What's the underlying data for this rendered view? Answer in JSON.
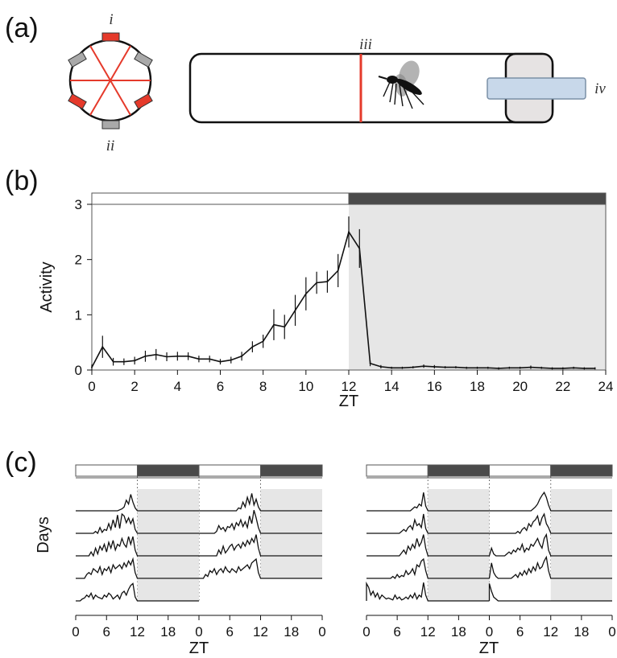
{
  "panels": {
    "a": "(a)",
    "b": "(b)",
    "c": "(c)"
  },
  "apparatus": {
    "label_i": "i",
    "label_ii": "ii",
    "label_iii": "iii",
    "label_iv": "iv"
  },
  "colors": {
    "red": "#e53a2b",
    "gray_mount": "#a9a9a9",
    "dark_bar": "#4a4a4a",
    "night_shade": "#e6e6e6",
    "tube_cap": "#e6e3e3",
    "food_bar": "#c8d8ea"
  },
  "chart_data": [
    {
      "type": "line",
      "panel": "b",
      "xlabel": "ZT",
      "ylabel": "Activity",
      "xlim": [
        0,
        24
      ],
      "ylim": [
        0,
        3
      ],
      "xticks": [
        0,
        2,
        4,
        6,
        8,
        10,
        12,
        14,
        16,
        18,
        20,
        22,
        24
      ],
      "yticks": [
        0,
        1,
        2,
        3
      ],
      "light_dark_bar": {
        "light": [
          0,
          12
        ],
        "dark": [
          12,
          24
        ]
      },
      "dark_shading": [
        12,
        24
      ],
      "series": [
        {
          "x": [
            0,
            0.5,
            1,
            1.5,
            2,
            2.5,
            3,
            3.5,
            4,
            4.5,
            5,
            5.5,
            6,
            6.5,
            7,
            7.5,
            8,
            8.5,
            9,
            9.5,
            10,
            10.5,
            11,
            11.5,
            12,
            12.5,
            13,
            13.5,
            14,
            14.5,
            15,
            15.5,
            16,
            16.5,
            17,
            17.5,
            18,
            18.5,
            19,
            19.5,
            20,
            20.5,
            21,
            21.5,
            22,
            22.5,
            23,
            23.5
          ],
          "values": [
            0.05,
            0.42,
            0.15,
            0.15,
            0.17,
            0.25,
            0.28,
            0.24,
            0.25,
            0.25,
            0.2,
            0.2,
            0.15,
            0.18,
            0.25,
            0.42,
            0.52,
            0.82,
            0.78,
            1.08,
            1.38,
            1.58,
            1.6,
            1.8,
            2.5,
            2.2,
            0.12,
            0.06,
            0.04,
            0.04,
            0.05,
            0.07,
            0.06,
            0.05,
            0.05,
            0.04,
            0.04,
            0.04,
            0.03,
            0.04,
            0.04,
            0.05,
            0.04,
            0.03,
            0.03,
            0.04,
            0.03,
            0.03
          ],
          "errors": [
            0.05,
            0.2,
            0.07,
            0.06,
            0.07,
            0.1,
            0.1,
            0.08,
            0.08,
            0.07,
            0.06,
            0.06,
            0.05,
            0.06,
            0.08,
            0.1,
            0.12,
            0.28,
            0.22,
            0.28,
            0.3,
            0.2,
            0.2,
            0.3,
            0.28,
            0.35,
            0.05,
            0.03,
            0.02,
            0.02,
            0.02,
            0.03,
            0.03,
            0.02,
            0.02,
            0.02,
            0.02,
            0.02,
            0.02,
            0.02,
            0.02,
            0.03,
            0.02,
            0.02,
            0.02,
            0.02,
            0.02,
            0.02
          ]
        }
      ]
    },
    {
      "type": "line",
      "panel": "c-left",
      "ylabel": "Days",
      "xlabel": "ZT",
      "xtick_labels": [
        "0",
        "6",
        "12",
        "18",
        "0",
        "6",
        "12",
        "18",
        "0"
      ],
      "light_dark_bar": [
        "light",
        "dark",
        "light",
        "dark"
      ],
      "rows": [
        {
          "left": [
            0,
            0,
            0,
            0,
            0,
            0,
            0,
            0,
            0,
            0,
            0,
            0,
            0,
            0,
            0,
            0,
            0,
            0,
            0,
            0,
            0.05,
            0.1,
            0.2,
            0.55,
            0.35,
            0.85,
            0.45,
            0.15
          ],
          "right": [
            0,
            0,
            0,
            0,
            0,
            0,
            0,
            0,
            0,
            0,
            0,
            0,
            0,
            0,
            0,
            0,
            0,
            0,
            0.15,
            0.1,
            0.45,
            0.2,
            0.7,
            0.35,
            0.9,
            0.3,
            0.6,
            0.2
          ]
        },
        {
          "left": [
            0,
            0,
            0,
            0,
            0,
            0,
            0,
            0,
            0,
            0.1,
            0,
            0.3,
            0.05,
            0.2,
            0.15,
            0.5,
            0.2,
            0.7,
            0.3,
            0.95,
            0.25,
            1.0,
            0.9,
            0.55,
            0.8,
            0.5,
            0.75,
            0.2
          ],
          "right": [
            0,
            0,
            0,
            0,
            0,
            0,
            0,
            0,
            0.1,
            0.4,
            0.2,
            0.3,
            0.1,
            0.35,
            0.3,
            0.5,
            0.2,
            0.55,
            0.4,
            0.7,
            0.35,
            0.6,
            0.3,
            0.9,
            0.5,
            1.2,
            0.8,
            0.3
          ]
        },
        {
          "left": [
            0,
            0,
            0,
            0,
            0,
            0,
            0,
            0.2,
            0,
            0.4,
            0.1,
            0.5,
            0.3,
            0.6,
            0.2,
            0.7,
            0.4,
            0.8,
            0.3,
            0.6,
            0.5,
            0.9,
            0.6,
            0.45,
            1.0,
            0.6,
            1.0,
            0.3
          ],
          "right": [
            0,
            0,
            0,
            0,
            0,
            0,
            0,
            0,
            0,
            0.3,
            0.1,
            0.5,
            0.15,
            0.3,
            0.5,
            0.6,
            0.3,
            0.5,
            0.6,
            0.4,
            0.7,
            0.5,
            0.8,
            0.6,
            0.9,
            0.7,
            1.1,
            0.4
          ]
        },
        {
          "left": [
            0,
            0,
            0,
            0,
            0,
            0.2,
            0.3,
            0.2,
            0.5,
            0.4,
            0.3,
            0.6,
            0.2,
            0.5,
            0.4,
            0.6,
            0.3,
            0.7,
            0.5,
            0.6,
            0.7,
            0.5,
            0.8,
            0.6,
            0.9,
            0.7,
            1.0,
            0.3
          ],
          "right": [
            0,
            0,
            0,
            0.2,
            0.1,
            0.4,
            0.3,
            0.5,
            0.2,
            0.4,
            0.5,
            0.3,
            0.6,
            0.4,
            0.3,
            0.5,
            0.4,
            0.3,
            0.6,
            0.4,
            0.5,
            0.6,
            0.7,
            0.5,
            0.8,
            0.9,
            1.0,
            0.3
          ]
        },
        {
          "left": [
            0,
            0,
            0,
            0.1,
            0.15,
            0.3,
            0.2,
            0.4,
            0.1,
            0.3,
            0.2,
            0.15,
            0.1,
            0.3,
            0.2,
            0.4,
            0.3,
            0.1,
            0.2,
            0.3,
            0.1,
            0.4,
            0.5,
            0.3,
            0.6,
            0.8,
            0.9,
            0.2
          ]
        }
      ]
    },
    {
      "type": "line",
      "panel": "c-right",
      "xlabel": "ZT",
      "xtick_labels": [
        "0",
        "6",
        "12",
        "18",
        "0",
        "6",
        "12",
        "18",
        "0"
      ],
      "light_dark_bar": [
        "light",
        "dark",
        "light",
        "dark"
      ],
      "rows": [
        {
          "left": [
            0,
            0,
            0,
            0,
            0,
            0,
            0,
            0,
            0,
            0,
            0,
            0,
            0,
            0,
            0,
            0,
            0,
            0,
            0,
            0,
            0,
            0.1,
            0.2,
            0.15,
            0.35,
            0.25,
            0.95,
            0.25
          ],
          "right": [
            0,
            0,
            0,
            0,
            0,
            0,
            0,
            0,
            0,
            0,
            0,
            0,
            0,
            0,
            0,
            0,
            0,
            0,
            0,
            0,
            0.1,
            0.2,
            0.35,
            0.6,
            0.8,
            0.95,
            0.7,
            0.3
          ]
        },
        {
          "left": [
            0,
            0,
            0,
            0,
            0,
            0,
            0,
            0,
            0,
            0,
            0,
            0,
            0,
            0,
            0,
            0,
            0.1,
            0.2,
            0.1,
            0.3,
            0.4,
            0.2,
            0.7,
            0.4,
            0.5,
            0.3,
            1.0,
            0.25
          ],
          "right": [
            0,
            0,
            0,
            0,
            0,
            0,
            0,
            0,
            0,
            0,
            0,
            0,
            0,
            0.1,
            0,
            0.2,
            0.3,
            0.15,
            0.5,
            0.35,
            0.6,
            0.7,
            0.9,
            0.4,
            0.8,
            1.0,
            0.5,
            0.3
          ]
        },
        {
          "left": [
            0,
            0,
            0,
            0,
            0,
            0,
            0,
            0,
            0,
            0,
            0,
            0,
            0,
            0,
            0,
            0,
            0.15,
            0.3,
            0.1,
            0.5,
            0.3,
            0.6,
            0.4,
            0.9,
            0.5,
            0.7,
            1.1,
            0.4
          ],
          "right": [
            0,
            0.4,
            0.1,
            0,
            0,
            0,
            0,
            0,
            0.1,
            0.2,
            0.1,
            0.3,
            0.2,
            0.4,
            0.3,
            0.6,
            0.2,
            0.4,
            0.3,
            0.6,
            0.5,
            0.7,
            0.9,
            0.6,
            0.4,
            0.9,
            1.1,
            0.3
          ]
        },
        {
          "left": [
            0,
            0,
            0,
            0,
            0,
            0,
            0,
            0,
            0,
            0,
            0,
            0,
            0.1,
            0,
            0.2,
            0.05,
            0.15,
            0.1,
            0.4,
            0.2,
            0.3,
            0.5,
            0.2,
            0.7,
            0.6,
            0.9,
            1.0,
            0.4
          ],
          "right": [
            0,
            0.8,
            0.3,
            0.1,
            0,
            0,
            0,
            0,
            0,
            0,
            0,
            0.1,
            0.2,
            0.05,
            0.3,
            0.15,
            0.4,
            0.2,
            0.5,
            0.3,
            0.6,
            0.4,
            0.8,
            0.5,
            0.6,
            0.9,
            1.1,
            0.4
          ]
        },
        {
          "left": [
            0.9,
            0.7,
            0.3,
            0.5,
            0.2,
            0.4,
            0.1,
            0.3,
            0.2,
            0.1,
            0.15,
            0.1,
            0.05,
            0.3,
            0.1,
            0.2,
            0.05,
            0.1,
            0.2,
            0.1,
            0.3,
            0.15,
            0.4,
            0.1,
            0.3,
            0.2,
            0.95,
            0.3
          ],
          "right": [
            0.9,
            0.5,
            0.2,
            0.1,
            0,
            0,
            0,
            0,
            0,
            0,
            0,
            0,
            0,
            0,
            0,
            0,
            0,
            0,
            0,
            0,
            0,
            0,
            0,
            0,
            0,
            0,
            0,
            0
          ]
        }
      ]
    }
  ]
}
